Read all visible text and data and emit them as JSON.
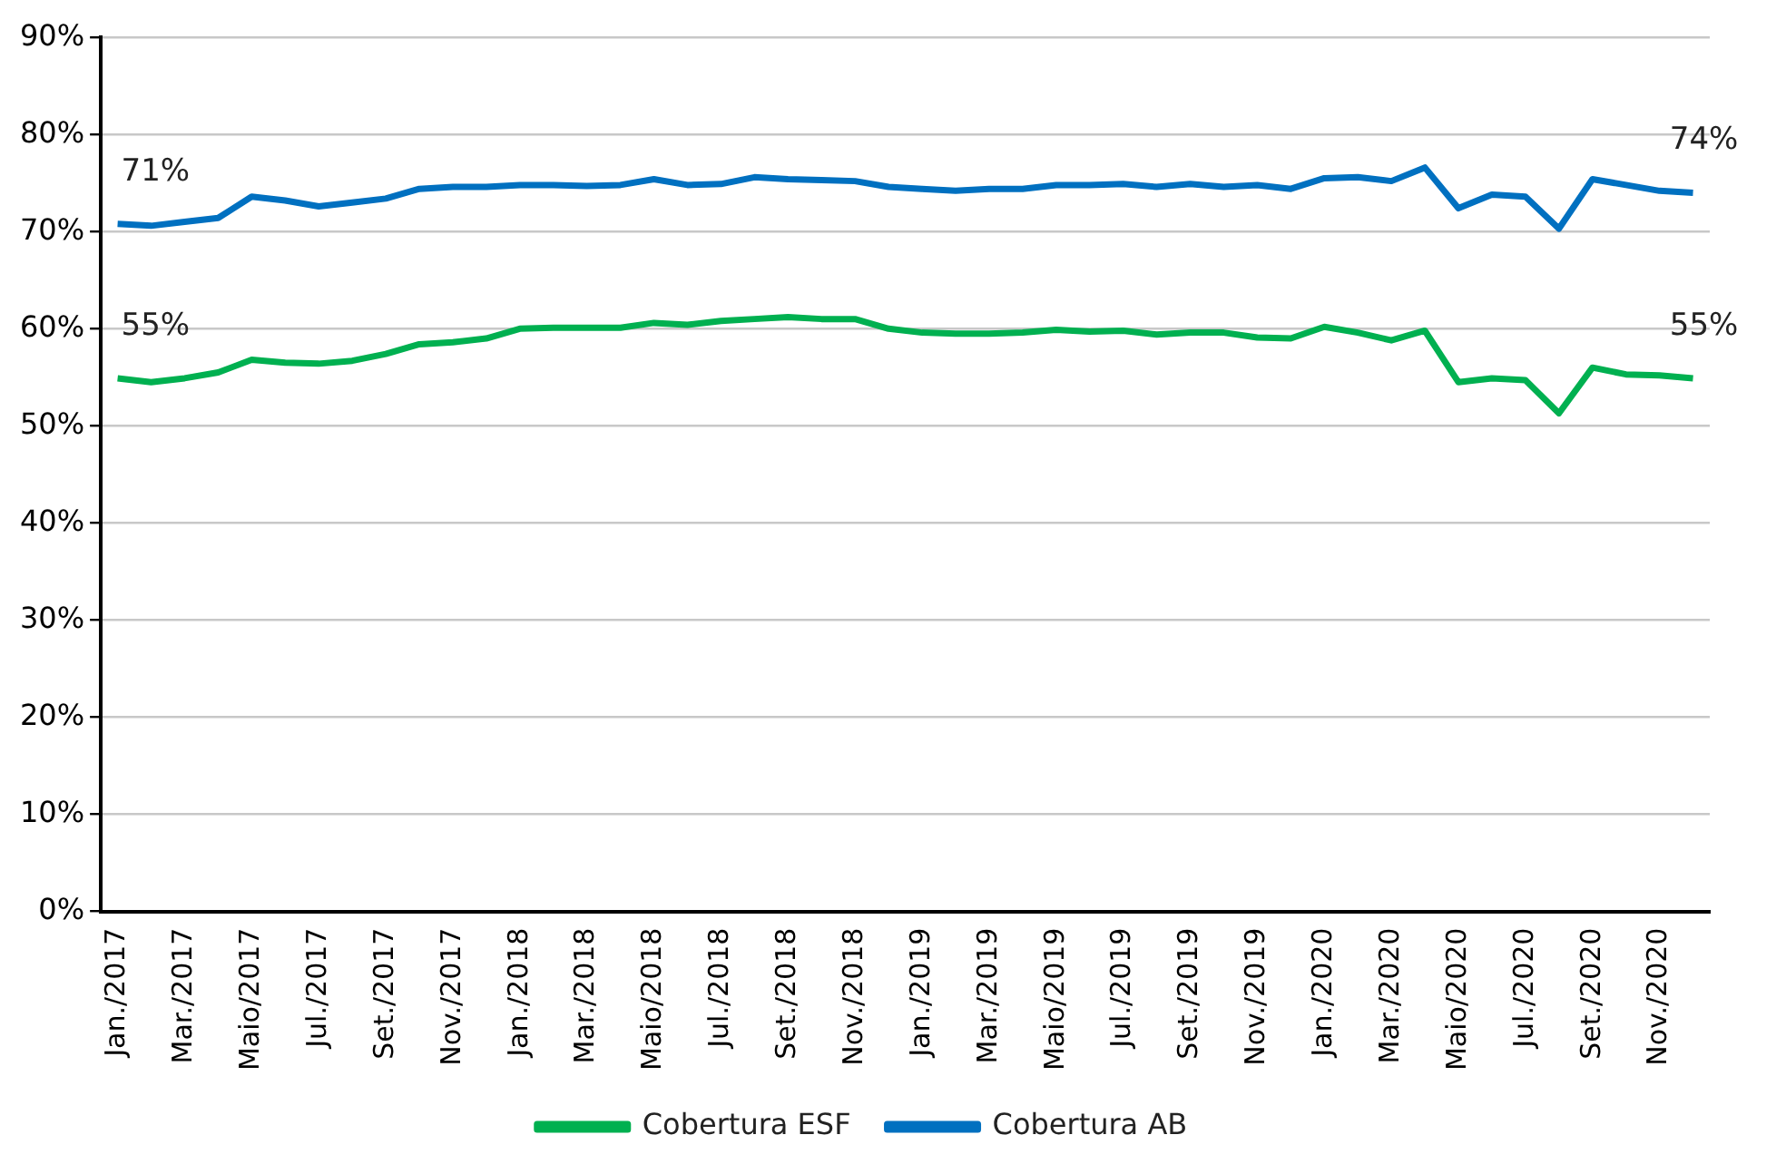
{
  "chart_data": {
    "type": "line",
    "categories": [
      "Jan./2017",
      null,
      "Mar./2017",
      null,
      "Maio/2017",
      null,
      "Jul./2017",
      null,
      "Set./2017",
      null,
      "Nov./2017",
      null,
      "Jan./2018",
      null,
      "Mar./2018",
      null,
      "Maio/2018",
      null,
      "Jul./2018",
      null,
      "Set./2018",
      null,
      "Nov./2018",
      null,
      "Jan./2019",
      null,
      "Mar./2019",
      null,
      "Maio/2019",
      null,
      "Jul./2019",
      null,
      "Set./2019",
      null,
      "Nov./2019",
      null,
      "Jan./2020",
      null,
      "Mar./2020",
      null,
      "Maio/2020",
      null,
      "Jul./2020",
      null,
      "Set./2020",
      null,
      "Nov./2020",
      null
    ],
    "series": [
      {
        "name": "Cobertura ESF",
        "color": "#00b050",
        "values": [
          54.9,
          54.5,
          54.9,
          55.5,
          56.8,
          56.5,
          56.4,
          56.7,
          57.4,
          58.4,
          58.6,
          59.0,
          60.0,
          60.1,
          60.1,
          60.1,
          60.6,
          60.4,
          60.8,
          61.0,
          61.2,
          61.0,
          61.0,
          60.0,
          59.6,
          59.5,
          59.5,
          59.6,
          59.9,
          59.7,
          59.8,
          59.4,
          59.6,
          59.6,
          59.1,
          59.0,
          60.2,
          59.6,
          58.8,
          59.8,
          54.5,
          54.9,
          54.7,
          51.3,
          56.0,
          55.3,
          55.2,
          54.9
        ],
        "value_labels": [
          "55%",
          null,
          null,
          null,
          null,
          null,
          null,
          null,
          null,
          null,
          null,
          null,
          null,
          null,
          null,
          null,
          null,
          null,
          null,
          null,
          null,
          null,
          null,
          null,
          null,
          null,
          null,
          null,
          null,
          null,
          null,
          null,
          null,
          null,
          null,
          null,
          null,
          null,
          null,
          null,
          null,
          null,
          null,
          null,
          null,
          null,
          null,
          "55%"
        ]
      },
      {
        "name": "Cobertura AB",
        "color": "#0070c0",
        "values": [
          70.8,
          70.6,
          71.0,
          71.4,
          73.6,
          73.2,
          72.6,
          73.0,
          73.4,
          74.4,
          74.6,
          74.6,
          74.8,
          74.8,
          74.7,
          74.8,
          75.4,
          74.8,
          74.9,
          75.6,
          75.4,
          75.3,
          75.2,
          74.6,
          74.4,
          74.2,
          74.4,
          74.4,
          74.8,
          74.8,
          74.9,
          74.6,
          74.9,
          74.6,
          74.8,
          74.4,
          75.5,
          75.6,
          75.2,
          76.6,
          72.4,
          73.8,
          73.6,
          70.3,
          75.4,
          74.8,
          74.2,
          74.0
        ],
        "value_labels": [
          "71%",
          null,
          null,
          null,
          null,
          null,
          null,
          null,
          null,
          null,
          null,
          null,
          null,
          null,
          null,
          null,
          null,
          null,
          null,
          null,
          null,
          null,
          null,
          null,
          null,
          null,
          null,
          null,
          null,
          null,
          null,
          null,
          null,
          null,
          null,
          null,
          null,
          null,
          null,
          null,
          null,
          null,
          null,
          null,
          null,
          null,
          null,
          "74%"
        ]
      }
    ],
    "ylim": [
      0,
      90
    ],
    "yticks": [
      {
        "value": 0,
        "label": "0%"
      },
      {
        "value": 10,
        "label": "10%"
      },
      {
        "value": 20,
        "label": "20%"
      },
      {
        "value": 30,
        "label": "30%"
      },
      {
        "value": 40,
        "label": "40%"
      },
      {
        "value": 50,
        "label": "50%"
      },
      {
        "value": 60,
        "label": "60%"
      },
      {
        "value": 70,
        "label": "70%"
      },
      {
        "value": 80,
        "label": "80%"
      },
      {
        "value": 90,
        "label": "90%"
      }
    ],
    "grid": "y",
    "legend": "bottom",
    "marker": "none",
    "line_style": "solid"
  }
}
